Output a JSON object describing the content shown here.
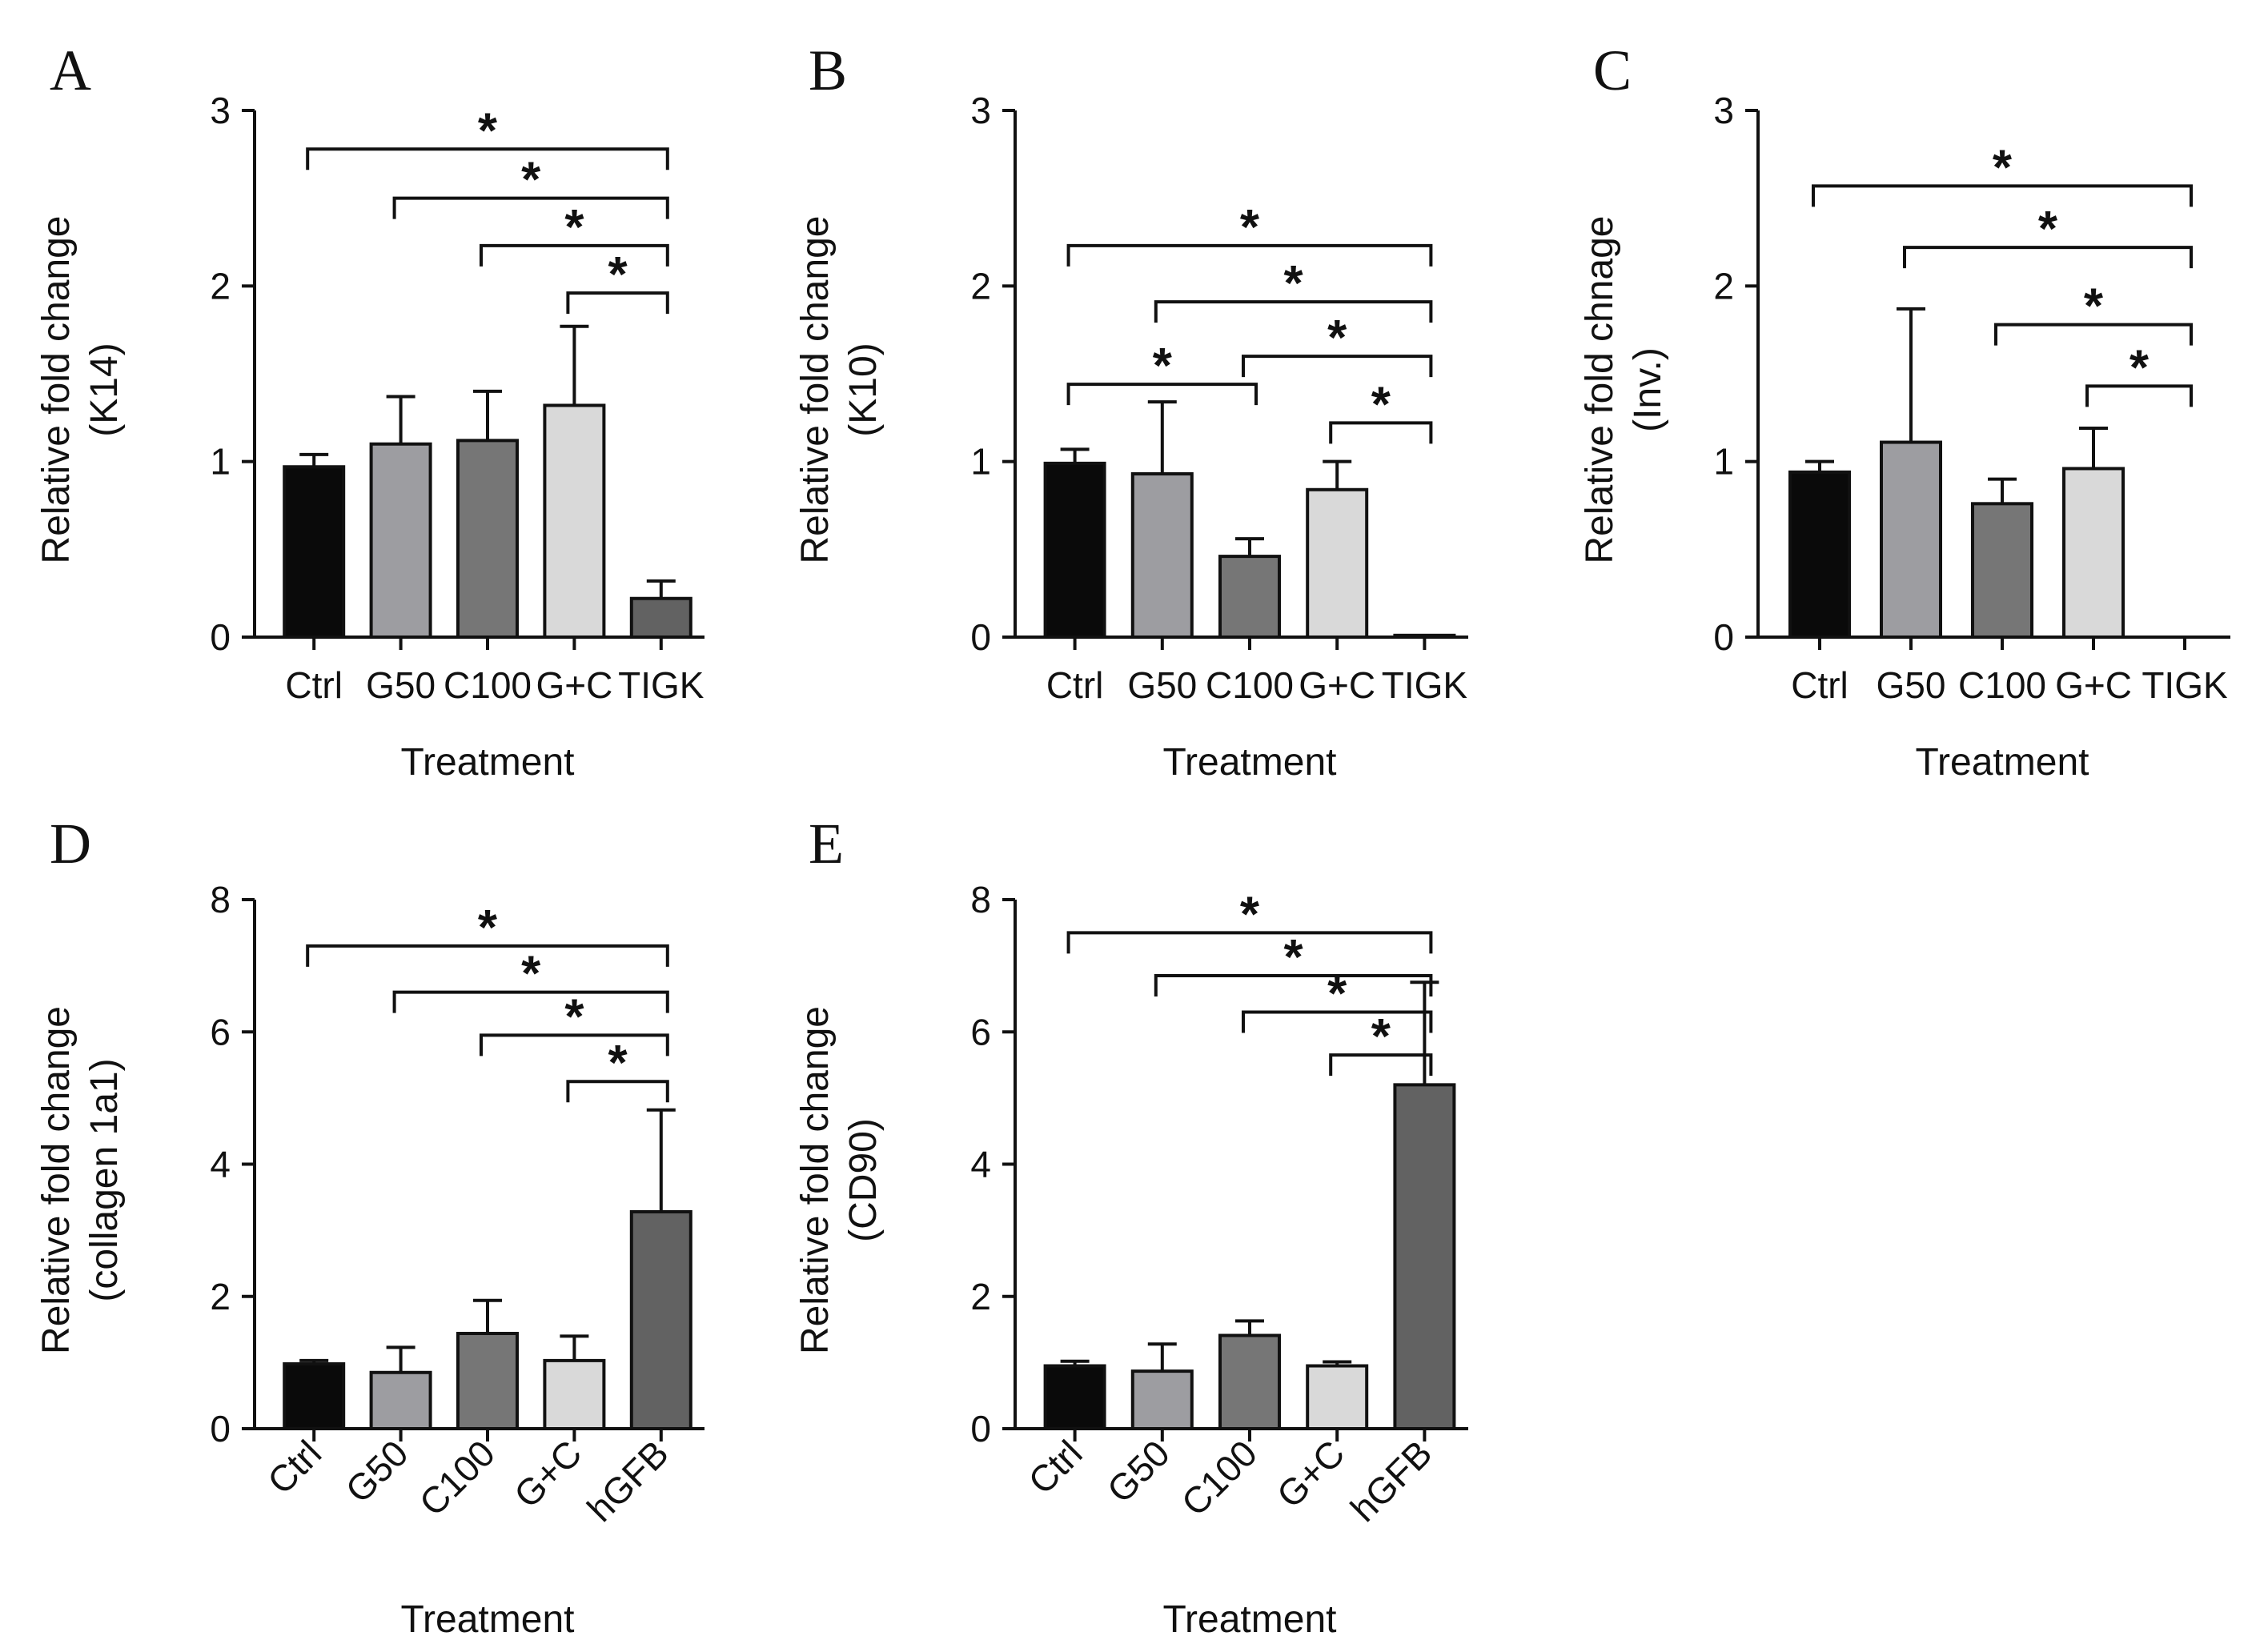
{
  "figure_description": "",
  "colors": {
    "Ctrl": "#0a0a0a",
    "G50": "#9d9da1",
    "C100": "#767676",
    "G+C": "#d9d9d9",
    "TIGK": "#626262",
    "hGFB": "#626262",
    "axis": "#111111"
  },
  "chart_data": [
    {
      "panel": "A",
      "type": "bar",
      "categories": [
        "Ctrl",
        "G50",
        "C100",
        "G+C",
        "TIGK"
      ],
      "values": [
        0.97,
        1.1,
        1.12,
        1.32,
        0.22
      ],
      "errors": [
        0.07,
        0.27,
        0.28,
        0.45,
        0.1
      ],
      "xlabel": "Treatment",
      "ylabel": [
        "Relative fold change",
        "(K14)"
      ],
      "ylim": [
        0,
        3
      ],
      "yticks": [
        0,
        1,
        2,
        3
      ],
      "tick_rotation": 0,
      "significance": [
        {
          "from": 0,
          "to": 4,
          "label": "*",
          "level": 2.78
        },
        {
          "from": 1,
          "to": 4,
          "label": "*",
          "level": 2.5
        },
        {
          "from": 2,
          "to": 4,
          "label": "*",
          "level": 2.23
        },
        {
          "from": 3,
          "to": 4,
          "label": "*",
          "level": 1.96
        }
      ]
    },
    {
      "panel": "B",
      "type": "bar",
      "categories": [
        "Ctrl",
        "G50",
        "C100",
        "G+C",
        "TIGK"
      ],
      "values": [
        0.99,
        0.93,
        0.46,
        0.84,
        0.01
      ],
      "errors": [
        0.08,
        0.41,
        0.1,
        0.16,
        0
      ],
      "xlabel": "Treatment",
      "ylabel": [
        "Relative fold change",
        "(K10)"
      ],
      "ylim": [
        0,
        3
      ],
      "yticks": [
        0,
        1,
        2,
        3
      ],
      "tick_rotation": 0,
      "significance": [
        {
          "from": 0,
          "to": 4,
          "label": "*",
          "level": 2.23
        },
        {
          "from": 1,
          "to": 4,
          "label": "*",
          "level": 1.91
        },
        {
          "from": 0,
          "to": 2,
          "label": "*",
          "level": 1.44
        },
        {
          "from": 2,
          "to": 4,
          "label": "*",
          "level": 1.6
        },
        {
          "from": 3,
          "to": 4,
          "label": "*",
          "level": 1.22
        }
      ]
    },
    {
      "panel": "C",
      "type": "bar",
      "categories": [
        "Ctrl",
        "G50",
        "C100",
        "G+C",
        "TIGK"
      ],
      "values": [
        0.94,
        1.11,
        0.76,
        0.96,
        0.0
      ],
      "errors": [
        0.06,
        0.76,
        0.14,
        0.23,
        0
      ],
      "xlabel": "Treatment",
      "ylabel": [
        "Relative fold chnage",
        "(Inv.)"
      ],
      "ylim": [
        0,
        3
      ],
      "yticks": [
        0,
        1,
        2,
        3
      ],
      "tick_rotation": 0,
      "significance": [
        {
          "from": 0,
          "to": 4,
          "label": "*",
          "level": 2.57
        },
        {
          "from": 1,
          "to": 4,
          "label": "*",
          "level": 2.22
        },
        {
          "from": 2,
          "to": 4,
          "label": "*",
          "level": 1.78
        },
        {
          "from": 3,
          "to": 4,
          "label": "*",
          "level": 1.43
        }
      ]
    },
    {
      "panel": "D",
      "type": "bar",
      "categories": [
        "Ctrl",
        "G50",
        "C100",
        "G+C",
        "hGFB"
      ],
      "values": [
        0.98,
        0.85,
        1.44,
        1.03,
        3.28
      ],
      "errors": [
        0.05,
        0.38,
        0.5,
        0.37,
        1.54
      ],
      "xlabel": "Treatment",
      "ylabel": [
        "Relative fold change",
        "(collagen 1a1)"
      ],
      "ylim": [
        0,
        8
      ],
      "yticks": [
        0,
        2,
        4,
        6,
        8
      ],
      "tick_rotation": -45,
      "significance": [
        {
          "from": 0,
          "to": 4,
          "label": "*",
          "level": 7.3
        },
        {
          "from": 1,
          "to": 4,
          "label": "*",
          "level": 6.6
        },
        {
          "from": 2,
          "to": 4,
          "label": "*",
          "level": 5.95
        },
        {
          "from": 3,
          "to": 4,
          "label": "*",
          "level": 5.25
        }
      ]
    },
    {
      "panel": "E",
      "type": "bar",
      "categories": [
        "Ctrl",
        "G50",
        "C100",
        "G+C",
        "hGFB"
      ],
      "values": [
        0.95,
        0.87,
        1.41,
        0.95,
        5.2
      ],
      "errors": [
        0.07,
        0.41,
        0.22,
        0.06,
        1.55
      ],
      "xlabel": "Treatment",
      "ylabel": [
        "Relative fold change",
        "(CD90)"
      ],
      "ylim": [
        0,
        8
      ],
      "yticks": [
        0,
        2,
        4,
        6,
        8
      ],
      "tick_rotation": -45,
      "significance": [
        {
          "from": 0,
          "to": 4,
          "label": "*",
          "level": 7.5
        },
        {
          "from": 1,
          "to": 4,
          "label": "*",
          "level": 6.85
        },
        {
          "from": 2,
          "to": 4,
          "label": "*",
          "level": 6.3
        },
        {
          "from": 3,
          "to": 4,
          "label": "*",
          "level": 5.65
        }
      ]
    }
  ]
}
